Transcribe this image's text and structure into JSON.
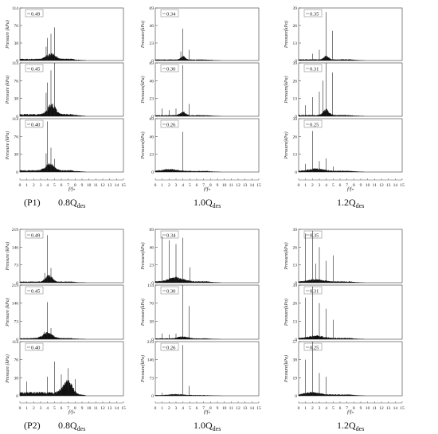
{
  "figure": {
    "xticks": [
      "0",
      "1",
      "2",
      "3",
      "4",
      "5",
      "6",
      "7",
      "8",
      "9",
      "10",
      "11",
      "12",
      "13",
      "14",
      "15"
    ],
    "x_label": "f/fₙ",
    "y_label": "Pressure (kPa)",
    "y_label_alt": "Pressure(kPa)"
  },
  "row_labels": [
    "(P1)",
    "(P2)"
  ],
  "column_captions": [
    {
      "base": "0.8Q",
      "sub": "des"
    },
    {
      "base": "1.0Q",
      "sub": "des"
    },
    {
      "base": "1.2Q",
      "sub": "des"
    }
  ],
  "chart_data": [
    {
      "type": "line",
      "group": "P1",
      "flow": "0.8Qdes",
      "span": "0.49",
      "ylabel": "Pressure (kPa)",
      "yticks": [
        "0",
        "38",
        "76",
        "114"
      ],
      "ylim": [
        0,
        114
      ],
      "xlim": [
        0,
        15
      ],
      "peaks": [
        {
          "x": 4.0,
          "y": 49
        },
        {
          "x": 4.5,
          "y": 58
        },
        {
          "x": 5.0,
          "y": 72
        },
        {
          "x": 3.8,
          "y": 30
        }
      ],
      "floor": 4,
      "hump": {
        "center": 4.5,
        "width": 1.8,
        "height": 14
      }
    },
    {
      "type": "line",
      "group": "P1",
      "flow": "0.8Qdes",
      "span": "0.45",
      "ylabel": "Pressure (kPa)",
      "yticks": [
        "0",
        "38",
        "76",
        "114"
      ],
      "ylim": [
        0,
        114
      ],
      "xlim": [
        0,
        15
      ],
      "peaks": [
        {
          "x": 4.0,
          "y": 72
        },
        {
          "x": 4.5,
          "y": 98
        },
        {
          "x": 5.0,
          "y": 114
        },
        {
          "x": 3.8,
          "y": 50
        }
      ],
      "floor": 5,
      "hump": {
        "center": 4.6,
        "width": 1.6,
        "height": 25
      }
    },
    {
      "type": "line",
      "group": "P1",
      "flow": "0.8Qdes",
      "span": "0.40",
      "ylabel": "Pressure (kPa)",
      "yticks": [
        "0",
        "38",
        "76",
        "114"
      ],
      "ylim": [
        0,
        114
      ],
      "xlim": [
        0,
        15
      ],
      "peaks": [
        {
          "x": 4.0,
          "y": 108
        },
        {
          "x": 4.5,
          "y": 52
        },
        {
          "x": 3.8,
          "y": 40
        },
        {
          "x": 5.0,
          "y": 28
        }
      ],
      "floor": 4,
      "hump": {
        "center": 4.3,
        "width": 1.8,
        "height": 16
      }
    },
    {
      "type": "line",
      "group": "P1",
      "flow": "1.0Qdes",
      "span": "0.34",
      "ylabel": "Pressure(kPa)",
      "yticks": [
        "0",
        "23",
        "46",
        "69"
      ],
      "ylim": [
        0,
        69
      ],
      "xlim": [
        0,
        15
      ],
      "peaks": [
        {
          "x": 4.0,
          "y": 42
        },
        {
          "x": 4.9,
          "y": 14
        },
        {
          "x": 3.7,
          "y": 12
        }
      ],
      "floor": 1.5,
      "hump": {
        "center": 4.0,
        "width": 1.0,
        "height": 5
      }
    },
    {
      "type": "line",
      "group": "P1",
      "flow": "1.0Qdes",
      "span": "0.30",
      "ylabel": "Pressure(kPa)",
      "yticks": [
        "0",
        "23",
        "46",
        "69"
      ],
      "ylim": [
        0,
        69
      ],
      "xlim": [
        0,
        15
      ],
      "peaks": [
        {
          "x": 4.0,
          "y": 66
        },
        {
          "x": 4.9,
          "y": 16
        },
        {
          "x": 1.0,
          "y": 10
        },
        {
          "x": 2.0,
          "y": 8
        },
        {
          "x": 3.0,
          "y": 10
        }
      ],
      "floor": 1.5,
      "hump": {
        "center": 4.0,
        "width": 1.2,
        "height": 5
      }
    },
    {
      "type": "line",
      "group": "P1",
      "flow": "1.0Qdes",
      "span": "0.26",
      "ylabel": "Pressure(kPa)",
      "yticks": [
        "0",
        "23",
        "46",
        "69"
      ],
      "ylim": [
        0,
        69
      ],
      "xlim": [
        0,
        15
      ],
      "peaks": [
        {
          "x": 4.0,
          "y": 52
        },
        {
          "x": 1.5,
          "y": 4
        },
        {
          "x": 2.5,
          "y": 4
        }
      ],
      "floor": 1.5,
      "hump": {
        "center": 2.0,
        "width": 3.0,
        "height": 3
      }
    },
    {
      "type": "line",
      "group": "P1",
      "flow": "1.2Qdes",
      "span": "0.35",
      "ylabel": "Pressure(kPa)",
      "yticks": [
        "0",
        "13",
        "26",
        "39"
      ],
      "ylim": [
        0,
        39
      ],
      "xlim": [
        0,
        15
      ],
      "peaks": [
        {
          "x": 4.0,
          "y": 36
        },
        {
          "x": 4.9,
          "y": 22
        },
        {
          "x": 3.0,
          "y": 8
        },
        {
          "x": 2.0,
          "y": 5
        }
      ],
      "floor": 1,
      "hump": {
        "center": 4.0,
        "width": 1.0,
        "height": 3
      }
    },
    {
      "type": "line",
      "group": "P1",
      "flow": "1.2Qdes",
      "span": "0.31",
      "ylabel": "Pressure(kPa)",
      "yticks": [
        "0",
        "13",
        "26",
        "39"
      ],
      "ylim": [
        0,
        39
      ],
      "xlim": [
        0,
        15
      ],
      "peaks": [
        {
          "x": 4.0,
          "y": 39
        },
        {
          "x": 4.9,
          "y": 32
        },
        {
          "x": 2.0,
          "y": 14
        },
        {
          "x": 3.0,
          "y": 18
        },
        {
          "x": 1.0,
          "y": 8
        },
        {
          "x": 3.5,
          "y": 26
        }
      ],
      "floor": 1,
      "hump": {
        "center": 4.0,
        "width": 1.2,
        "height": 5
      }
    },
    {
      "type": "line",
      "group": "P1",
      "flow": "1.2Qdes",
      "span": "0.25",
      "ylabel": "Pressure(kPa)",
      "yticks": [
        "0",
        "13",
        "26",
        "39"
      ],
      "ylim": [
        0,
        39
      ],
      "xlim": [
        0,
        15
      ],
      "peaks": [
        {
          "x": 2.0,
          "y": 30
        },
        {
          "x": 4.0,
          "y": 10
        },
        {
          "x": 1.0,
          "y": 6
        },
        {
          "x": 3.0,
          "y": 8
        },
        {
          "x": 5.0,
          "y": 4
        }
      ],
      "floor": 1,
      "hump": {
        "center": 2.5,
        "width": 3.0,
        "height": 2
      }
    },
    {
      "type": "line",
      "group": "P2",
      "flow": "0.8Qdes",
      "span": "0.49",
      "ylabel": "Pressure (kPa)",
      "yticks": [
        "0",
        "73",
        "146",
        "219"
      ],
      "ylim": [
        0,
        219
      ],
      "xlim": [
        0,
        15
      ],
      "peaks": [
        {
          "x": 4.0,
          "y": 195
        },
        {
          "x": 4.5,
          "y": 60
        },
        {
          "x": 3.6,
          "y": 40
        }
      ],
      "floor": 5,
      "hump": {
        "center": 4.2,
        "width": 1.4,
        "height": 30
      }
    },
    {
      "type": "line",
      "group": "P2",
      "flow": "0.8Qdes",
      "span": "0.45",
      "ylabel": "Pressure (kPa)",
      "yticks": [
        "0",
        "73",
        "146",
        "219"
      ],
      "ylim": [
        0,
        219
      ],
      "xlim": [
        0,
        15
      ],
      "peaks": [
        {
          "x": 4.0,
          "y": 150
        },
        {
          "x": 4.5,
          "y": 45
        },
        {
          "x": 3.5,
          "y": 30
        }
      ],
      "floor": 5,
      "hump": {
        "center": 4.0,
        "width": 2.0,
        "height": 25
      }
    },
    {
      "type": "line",
      "group": "P2",
      "flow": "0.8Qdes",
      "span": "0.40",
      "ylabel": "Pressure (kPa)",
      "yticks": [
        "0",
        "38",
        "76",
        "114"
      ],
      "ylim": [
        0,
        114
      ],
      "xlim": [
        0,
        15
      ],
      "peaks": [
        {
          "x": 5.0,
          "y": 72
        },
        {
          "x": 7.0,
          "y": 58
        },
        {
          "x": 4.0,
          "y": 40
        },
        {
          "x": 1.0,
          "y": 30
        },
        {
          "x": 6.0,
          "y": 45
        },
        {
          "x": 8.0,
          "y": 35
        }
      ],
      "floor": 8,
      "hump": {
        "center": 7.0,
        "width": 2.0,
        "height": 30
      }
    },
    {
      "type": "line",
      "group": "P2",
      "flow": "1.0Qdes",
      "span": "0.34",
      "ylabel": "Pressure(kPa)",
      "yticks": [
        "0",
        "23",
        "46",
        "69"
      ],
      "ylim": [
        0,
        69
      ],
      "xlim": [
        0,
        15
      ],
      "peaks": [
        {
          "x": 1.0,
          "y": 60
        },
        {
          "x": 2.0,
          "y": 55
        },
        {
          "x": 3.0,
          "y": 50
        },
        {
          "x": 4.0,
          "y": 58
        },
        {
          "x": 5.0,
          "y": 20
        }
      ],
      "floor": 2,
      "hump": {
        "center": 3.0,
        "width": 3.0,
        "height": 6
      }
    },
    {
      "type": "line",
      "group": "P2",
      "flow": "1.0Qdes",
      "span": "0.30",
      "ylabel": "Pressure(kPa)",
      "yticks": [
        "0",
        "38",
        "76",
        "114"
      ],
      "ylim": [
        0,
        114
      ],
      "xlim": [
        0,
        15
      ],
      "peaks": [
        {
          "x": 4.0,
          "y": 114
        },
        {
          "x": 4.9,
          "y": 70
        },
        {
          "x": 1.0,
          "y": 12
        },
        {
          "x": 2.0,
          "y": 10
        },
        {
          "x": 3.0,
          "y": 12
        }
      ],
      "floor": 2,
      "hump": {
        "center": 4.0,
        "width": 2.0,
        "height": 5
      }
    },
    {
      "type": "line",
      "group": "P2",
      "flow": "1.0Qdes",
      "span": "0.26",
      "ylabel": "Pressure(kPa)",
      "yticks": [
        "0",
        "73",
        "146",
        "219"
      ],
      "ylim": [
        0,
        219
      ],
      "xlim": [
        0,
        15
      ],
      "peaks": [
        {
          "x": 4.0,
          "y": 205
        },
        {
          "x": 4.9,
          "y": 40
        },
        {
          "x": 1.0,
          "y": 12
        }
      ],
      "floor": 3,
      "hump": {
        "center": 3.0,
        "width": 3.0,
        "height": 5
      }
    },
    {
      "type": "line",
      "group": "P2",
      "flow": "1.2Qdes",
      "span": "0.35",
      "ylabel": "Pressure(kPa)",
      "yticks": [
        "0",
        "13",
        "26",
        "39"
      ],
      "ylim": [
        0,
        39
      ],
      "xlim": [
        0,
        15
      ],
      "peaks": [
        {
          "x": 1.0,
          "y": 36
        },
        {
          "x": 2.0,
          "y": 38
        },
        {
          "x": 3.0,
          "y": 26
        },
        {
          "x": 4.0,
          "y": 16
        },
        {
          "x": 5.0,
          "y": 20
        },
        {
          "x": 2.5,
          "y": 14
        }
      ],
      "floor": 1,
      "hump": {
        "center": 2.5,
        "width": 3.0,
        "height": 2
      }
    },
    {
      "type": "line",
      "group": "P2",
      "flow": "1.2Qdes",
      "span": "0.31",
      "ylabel": "Pressure(kPa)",
      "yticks": [
        "0",
        "13",
        "26",
        "39"
      ],
      "ylim": [
        0,
        39
      ],
      "xlim": [
        0,
        15
      ],
      "peaks": [
        {
          "x": 1.0,
          "y": 30
        },
        {
          "x": 2.0,
          "y": 38
        },
        {
          "x": 3.0,
          "y": 26
        },
        {
          "x": 4.0,
          "y": 22
        },
        {
          "x": 5.0,
          "y": 14
        }
      ],
      "floor": 1,
      "hump": {
        "center": 2.5,
        "width": 3.0,
        "height": 2
      }
    },
    {
      "type": "line",
      "group": "P2",
      "flow": "1.2Qdes",
      "span": "0.25",
      "ylabel": "Pressure(kPa)",
      "yticks": [
        "0",
        "19",
        "38",
        "57"
      ],
      "ylim": [
        0,
        57
      ],
      "xlim": [
        0,
        15
      ],
      "peaks": [
        {
          "x": 1.0,
          "y": 38
        },
        {
          "x": 2.0,
          "y": 57
        },
        {
          "x": 3.0,
          "y": 24
        },
        {
          "x": 4.0,
          "y": 20
        }
      ],
      "floor": 1.5,
      "hump": {
        "center": 2.0,
        "width": 3.0,
        "height": 3
      }
    }
  ]
}
